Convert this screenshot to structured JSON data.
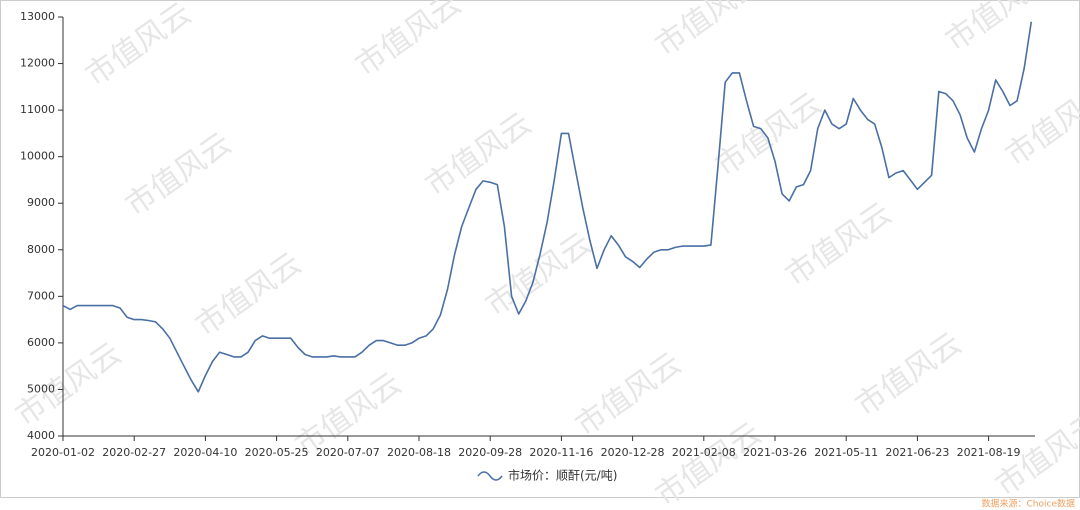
{
  "chart_data": {
    "type": "line",
    "categories": [
      "2020-01-02",
      null,
      null,
      null,
      null,
      null,
      null,
      null,
      null,
      null,
      "2020-02-27",
      null,
      null,
      null,
      null,
      null,
      null,
      null,
      null,
      null,
      "2020-04-10",
      null,
      null,
      null,
      null,
      null,
      null,
      null,
      null,
      null,
      "2020-05-25",
      null,
      null,
      null,
      null,
      null,
      null,
      null,
      null,
      null,
      "2020-07-07",
      null,
      null,
      null,
      null,
      null,
      null,
      null,
      null,
      null,
      "2020-08-18",
      null,
      null,
      null,
      null,
      null,
      null,
      null,
      null,
      null,
      "2020-09-28",
      null,
      null,
      null,
      null,
      null,
      null,
      null,
      null,
      null,
      "2020-11-16",
      null,
      null,
      null,
      null,
      null,
      null,
      null,
      null,
      null,
      "2020-12-28",
      null,
      null,
      null,
      null,
      null,
      null,
      null,
      null,
      null,
      "2021-02-08",
      null,
      null,
      null,
      null,
      null,
      null,
      null,
      null,
      null,
      "2021-03-26",
      null,
      null,
      null,
      null,
      null,
      null,
      null,
      null,
      null,
      "2021-05-11",
      null,
      null,
      null,
      null,
      null,
      null,
      null,
      null,
      null,
      "2021-06-23",
      null,
      null,
      null,
      null,
      null,
      null,
      null,
      null,
      null,
      "2021-08-19",
      null,
      null,
      null,
      null,
      null,
      null
    ],
    "series": [
      {
        "name": "市场价：顺酐(元/吨)",
        "color": "#4a6fa5",
        "values": [
          6800,
          6720,
          6800,
          6800,
          6800,
          6800,
          6800,
          6800,
          6750,
          6550,
          6500,
          6500,
          6480,
          6450,
          6300,
          6100,
          5800,
          5500,
          5200,
          4950,
          5300,
          5600,
          5800,
          5750,
          5700,
          5700,
          5800,
          6050,
          6150,
          6100,
          6100,
          6100,
          6100,
          5900,
          5750,
          5700,
          5700,
          5700,
          5720,
          5700,
          5700,
          5700,
          5800,
          5950,
          6050,
          6050,
          6000,
          5950,
          5950,
          6000,
          6100,
          6150,
          6300,
          6600,
          7150,
          7900,
          8500,
          8900,
          9300,
          9480,
          9450,
          9400,
          8500,
          7000,
          6620,
          6900,
          7300,
          7900,
          8600,
          9500,
          10500,
          10500,
          9700,
          8900,
          8200,
          7600,
          8000,
          8300,
          8100,
          7850,
          7750,
          7620,
          7800,
          7950,
          8000,
          8000,
          8050,
          8080,
          8080,
          8080,
          8080,
          8100,
          9800,
          11600,
          11800,
          11800,
          11200,
          10650,
          10600,
          10400,
          9900,
          9200,
          9050,
          9350,
          9400,
          9700,
          10600,
          11000,
          10700,
          10600,
          10700,
          11250,
          11000,
          10800,
          10700,
          10200,
          9550,
          9650,
          9700,
          9500,
          9300,
          9450,
          9600,
          11400,
          11350,
          11200,
          10900,
          10400,
          10100,
          10600,
          11000,
          11650,
          11400,
          11100,
          11200,
          11900,
          12900
        ]
      }
    ],
    "ylim": [
      4000,
      13000
    ],
    "yticks": [
      4000,
      5000,
      6000,
      7000,
      8000,
      9000,
      10000,
      11000,
      12000,
      13000
    ],
    "grid": false,
    "watermark": "市值风云",
    "source": "数据来源：Choice数据"
  }
}
